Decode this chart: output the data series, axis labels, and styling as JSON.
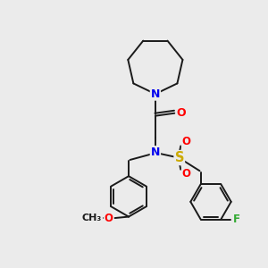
{
  "background_color": "#ebebeb",
  "bond_color": "#1a1a1a",
  "atom_colors": {
    "N": "#0000ee",
    "O": "#ff0000",
    "S": "#ccaa00",
    "F": "#33aa33",
    "C": "#1a1a1a"
  },
  "bond_width": 1.4,
  "font_size_atoms": 8.5,
  "figsize": [
    3.0,
    3.0
  ],
  "dpi": 100,
  "xlim": [
    0,
    10
  ],
  "ylim": [
    0,
    10
  ]
}
